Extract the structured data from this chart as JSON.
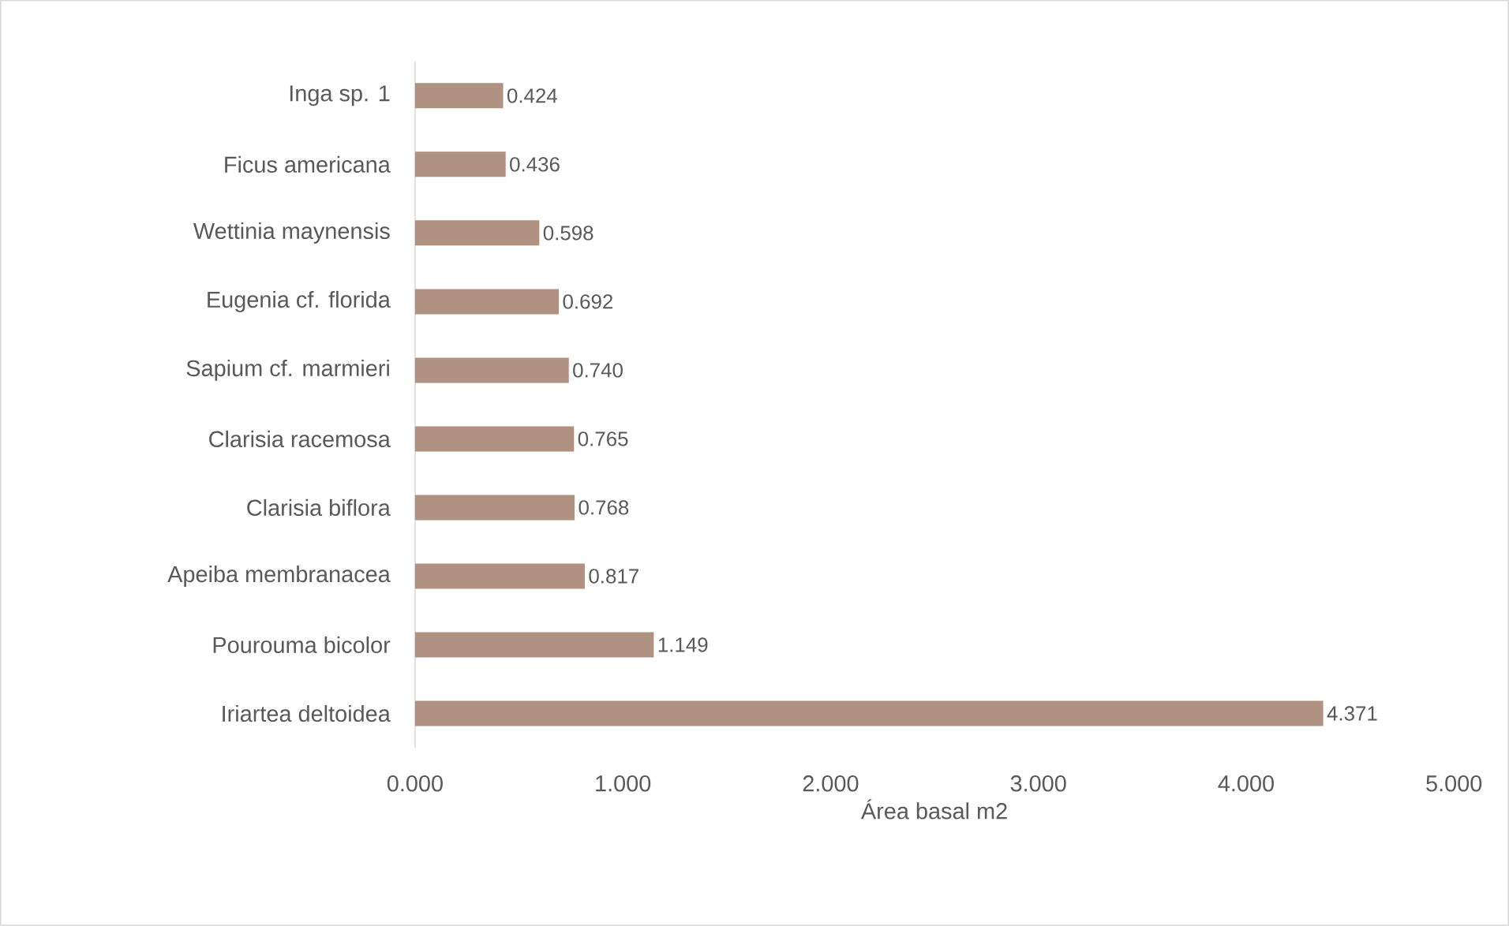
{
  "chart_data": {
    "type": "bar",
    "orientation": "horizontal",
    "categories": [
      "Inga sp. 1",
      "Ficus americana",
      "Wettinia maynensis",
      "Eugenia cf. florida",
      "Sapium cf. marmieri",
      "Clarisia racemosa",
      "Clarisia biflora",
      "Apeiba membranacea",
      "Pourouma bicolor",
      "Iriartea deltoidea"
    ],
    "values": [
      0.424,
      0.436,
      0.598,
      0.692,
      0.74,
      0.765,
      0.768,
      0.817,
      1.149,
      4.371
    ],
    "value_labels": [
      "0.424",
      "0.436",
      "0.598",
      "0.692",
      "0.740",
      "0.765",
      "0.768",
      "0.817",
      "1.149",
      "4.371"
    ],
    "color": "#b09282",
    "xlabel": "Área basal m2",
    "xlim": [
      0,
      5
    ],
    "xticks": [
      {
        "value": 0,
        "label": "0.000"
      },
      {
        "value": 1,
        "label": "1.000"
      },
      {
        "value": 2,
        "label": "2.000"
      },
      {
        "value": 3,
        "label": "3.000"
      },
      {
        "value": 4,
        "label": "4.000"
      },
      {
        "value": 5,
        "label": "5.000"
      }
    ]
  }
}
